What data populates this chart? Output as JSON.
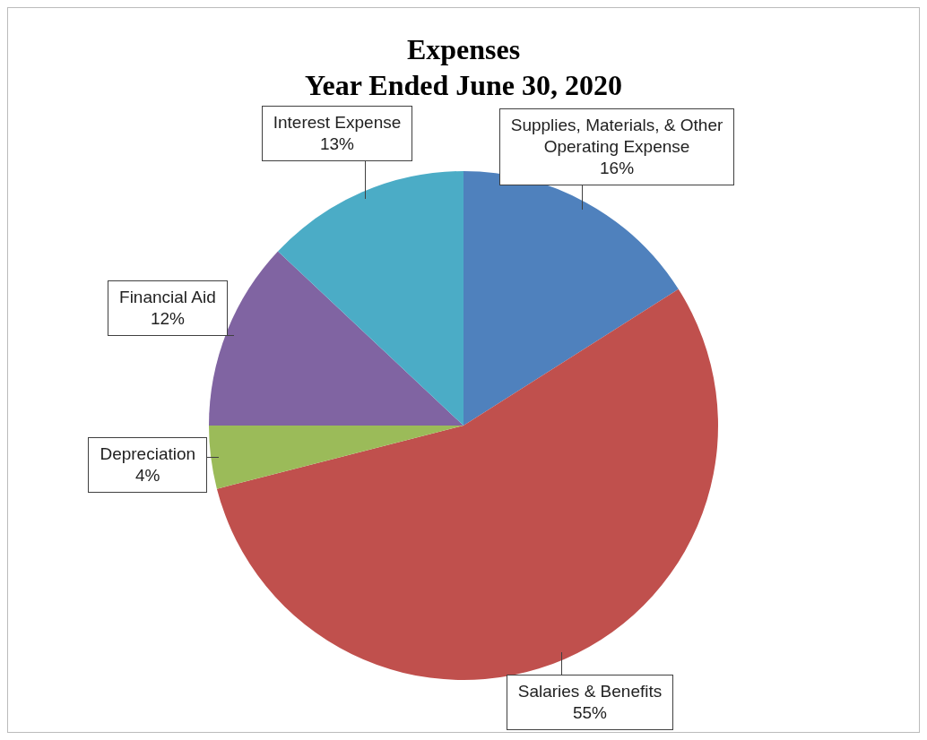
{
  "chart_data": {
    "type": "pie",
    "title": "Expenses\nYear Ended June 30, 2020",
    "categories": [
      "Supplies, Materials, & Other Operating Expense",
      "Salaries & Benefits",
      "Depreciation",
      "Financial Aid",
      "Interest Expense"
    ],
    "values": [
      16,
      55,
      4,
      12,
      13
    ],
    "value_labels": [
      "16%",
      "55%",
      "4%",
      "12%",
      "13%"
    ],
    "colors": [
      "#4f81bd",
      "#c0504d",
      "#9bbb59",
      "#8064a2",
      "#4bacc6"
    ]
  }
}
